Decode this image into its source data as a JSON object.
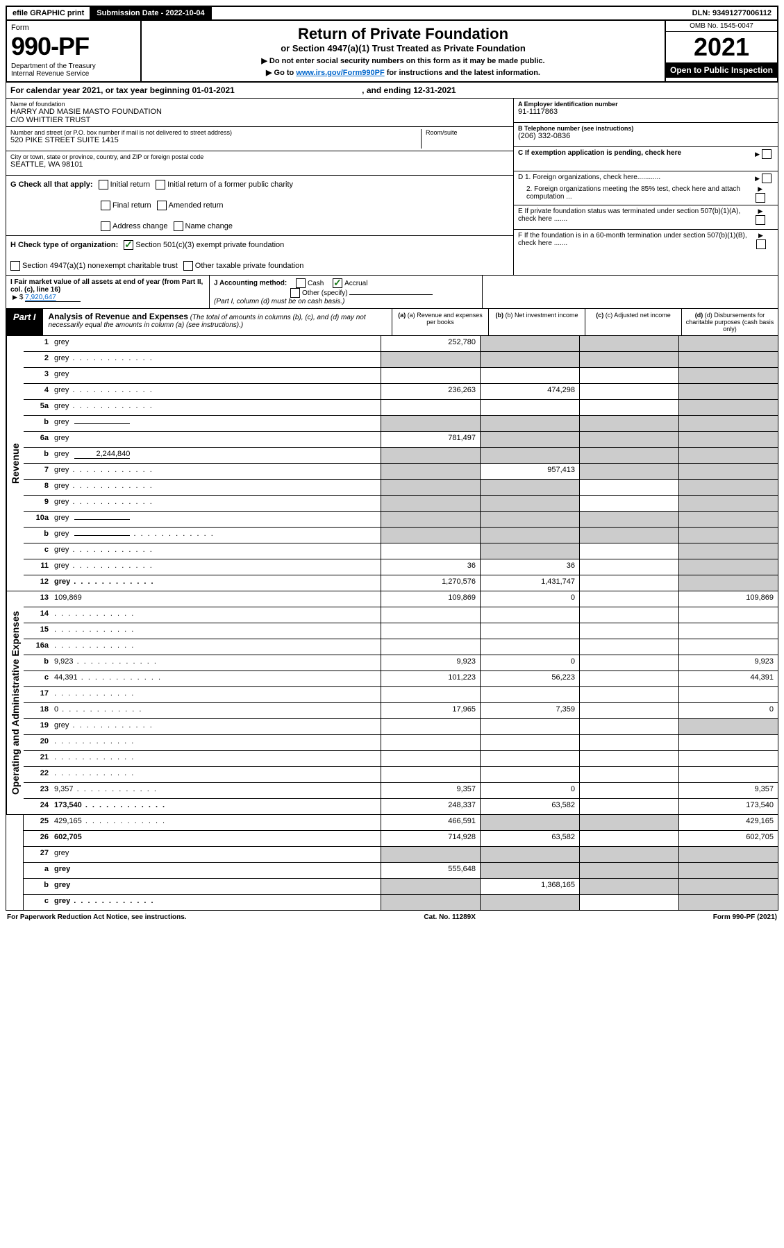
{
  "topbar": {
    "efile": "efile GRAPHIC print",
    "subdate_label": "Submission Date - ",
    "subdate": "2022-10-04",
    "dln_label": "DLN: ",
    "dln": "93491277006112"
  },
  "header": {
    "form_word": "Form",
    "form_num": "990-PF",
    "dept": "Department of the Treasury\nInternal Revenue Service",
    "title": "Return of Private Foundation",
    "subtitle": "or Section 4947(a)(1) Trust Treated as Private Foundation",
    "instr1": "▶ Do not enter social security numbers on this form as it may be made public.",
    "instr2_pre": "▶ Go to ",
    "instr2_link": "www.irs.gov/Form990PF",
    "instr2_post": " for instructions and the latest information.",
    "omb": "OMB No. 1545-0047",
    "year": "2021",
    "open": "Open to Public Inspection"
  },
  "cal": {
    "text_pre": "For calendar year 2021, or tax year beginning ",
    "begin": "01-01-2021",
    "mid": " , and ending ",
    "end": "12-31-2021"
  },
  "entity": {
    "name_label": "Name of foundation",
    "name": "HARRY AND MASIE MASTO FOUNDATION\nC/O WHITTIER TRUST",
    "addr_label": "Number and street (or P.O. box number if mail is not delivered to street address)",
    "addr": "520 PIKE STREET SUITE 1415",
    "room_label": "Room/suite",
    "city_label": "City or town, state or province, country, and ZIP or foreign postal code",
    "city": "SEATTLE, WA  98101",
    "ein_label": "A Employer identification number",
    "ein": "91-1117863",
    "phone_label": "B Telephone number (see instructions)",
    "phone": "(206) 332-0836",
    "c_label": "C If exemption application is pending, check here",
    "d1": "D 1. Foreign organizations, check here............",
    "d2": "2. Foreign organizations meeting the 85% test, check here and attach computation ...",
    "e": "E  If private foundation status was terminated under section 507(b)(1)(A), check here .......",
    "f": "F  If the foundation is in a 60-month termination under section 507(b)(1)(B), check here .......",
    "g_label": "G Check all that apply:",
    "g_items": [
      "Initial return",
      "Initial return of a former public charity",
      "Final return",
      "Amended return",
      "Address change",
      "Name change"
    ],
    "h_label": "H Check type of organization:",
    "h_items": [
      "Section 501(c)(3) exempt private foundation",
      "Section 4947(a)(1) nonexempt charitable trust",
      "Other taxable private foundation"
    ],
    "i_label": "I Fair market value of all assets at end of year (from Part II, col. (c), line 16)",
    "i_val": "7,920,647",
    "j_label": "J Accounting method:",
    "j_cash": "Cash",
    "j_accrual": "Accrual",
    "j_other": "Other (specify)",
    "j_note": "(Part I, column (d) must be on cash basis.)"
  },
  "part1": {
    "label": "Part I",
    "title": "Analysis of Revenue and Expenses",
    "note": "(The total of amounts in columns (b), (c), and (d) may not necessarily equal the amounts in column (a) (see instructions).)",
    "cols": {
      "a": "(a)  Revenue and expenses per books",
      "b": "(b)  Net investment income",
      "c": "(c)  Adjusted net income",
      "d": "(d)  Disbursements for charitable purposes (cash basis only)"
    }
  },
  "side": {
    "revenue": "Revenue",
    "expenses": "Operating and Administrative Expenses"
  },
  "rows": [
    {
      "n": "1",
      "d": "grey",
      "a": "252,780",
      "b": "grey",
      "c": "grey"
    },
    {
      "n": "2",
      "d": "grey",
      "dots": true,
      "a": "grey",
      "b": "grey",
      "c": "grey"
    },
    {
      "n": "3",
      "d": "grey",
      "a": "",
      "b": "",
      "c": ""
    },
    {
      "n": "4",
      "d": "grey",
      "dots": true,
      "a": "236,263",
      "b": "474,298",
      "c": ""
    },
    {
      "n": "5a",
      "d": "grey",
      "dots": true,
      "a": "",
      "b": "",
      "c": ""
    },
    {
      "n": "b",
      "d": "grey",
      "inline": "",
      "a": "grey",
      "b": "grey",
      "c": "grey"
    },
    {
      "n": "6a",
      "d": "grey",
      "a": "781,497",
      "b": "grey",
      "c": "grey"
    },
    {
      "n": "b",
      "d": "grey",
      "inline": "2,244,840",
      "a": "grey",
      "b": "grey",
      "c": "grey"
    },
    {
      "n": "7",
      "d": "grey",
      "dots": true,
      "a": "grey",
      "b": "957,413",
      "c": "grey"
    },
    {
      "n": "8",
      "d": "grey",
      "dots": true,
      "a": "grey",
      "b": "grey",
      "c": ""
    },
    {
      "n": "9",
      "d": "grey",
      "dots": true,
      "a": "grey",
      "b": "grey",
      "c": ""
    },
    {
      "n": "10a",
      "d": "grey",
      "inline": "",
      "a": "grey",
      "b": "grey",
      "c": "grey"
    },
    {
      "n": "b",
      "d": "grey",
      "dots": true,
      "inline": "",
      "a": "grey",
      "b": "grey",
      "c": "grey"
    },
    {
      "n": "c",
      "d": "grey",
      "dots": true,
      "a": "",
      "b": "grey",
      "c": ""
    },
    {
      "n": "11",
      "d": "grey",
      "dots": true,
      "a": "36",
      "b": "36",
      "c": ""
    },
    {
      "n": "12",
      "d": "grey",
      "bold": true,
      "dots": true,
      "a": "1,270,576",
      "b": "1,431,747",
      "c": ""
    },
    {
      "n": "13",
      "d": "109,869",
      "a": "109,869",
      "b": "0",
      "c": ""
    },
    {
      "n": "14",
      "d": "",
      "dots": true,
      "a": "",
      "b": "",
      "c": ""
    },
    {
      "n": "15",
      "d": "",
      "dots": true,
      "a": "",
      "b": "",
      "c": ""
    },
    {
      "n": "16a",
      "d": "",
      "dots": true,
      "a": "",
      "b": "",
      "c": ""
    },
    {
      "n": "b",
      "d": "9,923",
      "dots": true,
      "a": "9,923",
      "b": "0",
      "c": ""
    },
    {
      "n": "c",
      "d": "44,391",
      "dots": true,
      "a": "101,223",
      "b": "56,223",
      "c": ""
    },
    {
      "n": "17",
      "d": "",
      "dots": true,
      "a": "",
      "b": "",
      "c": ""
    },
    {
      "n": "18",
      "d": "0",
      "dots": true,
      "a": "17,965",
      "b": "7,359",
      "c": ""
    },
    {
      "n": "19",
      "d": "grey",
      "dots": true,
      "a": "",
      "b": "",
      "c": ""
    },
    {
      "n": "20",
      "d": "",
      "dots": true,
      "a": "",
      "b": "",
      "c": ""
    },
    {
      "n": "21",
      "d": "",
      "dots": true,
      "a": "",
      "b": "",
      "c": ""
    },
    {
      "n": "22",
      "d": "",
      "dots": true,
      "a": "",
      "b": "",
      "c": ""
    },
    {
      "n": "23",
      "d": "9,357",
      "dots": true,
      "a": "9,357",
      "b": "0",
      "c": ""
    },
    {
      "n": "24",
      "d": "173,540",
      "bold": true,
      "dots": true,
      "a": "248,337",
      "b": "63,582",
      "c": ""
    },
    {
      "n": "25",
      "d": "429,165",
      "dots": true,
      "a": "466,591",
      "b": "grey",
      "c": "grey"
    },
    {
      "n": "26",
      "d": "602,705",
      "bold": true,
      "a": "714,928",
      "b": "63,582",
      "c": ""
    },
    {
      "n": "27",
      "d": "grey",
      "a": "grey",
      "b": "grey",
      "c": "grey"
    },
    {
      "n": "a",
      "d": "grey",
      "bold": true,
      "a": "555,648",
      "b": "grey",
      "c": "grey"
    },
    {
      "n": "b",
      "d": "grey",
      "bold": true,
      "a": "grey",
      "b": "1,368,165",
      "c": "grey"
    },
    {
      "n": "c",
      "d": "grey",
      "bold": true,
      "dots": true,
      "a": "grey",
      "b": "grey",
      "c": ""
    }
  ],
  "footer": {
    "left": "For Paperwork Reduction Act Notice, see instructions.",
    "mid": "Cat. No. 11289X",
    "right": "Form 990-PF (2021)"
  },
  "colors": {
    "grey": "#cccccc",
    "link": "#0066cc",
    "check": "#1a7a1a"
  }
}
